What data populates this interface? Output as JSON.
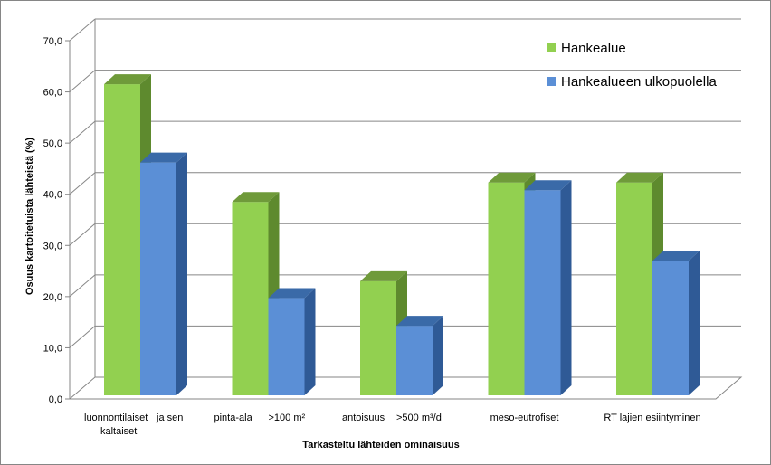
{
  "chart_data": {
    "type": "bar",
    "title": "",
    "xlabel": "Tarkasteltu lähteiden ominaisuus",
    "ylabel": "Osuus kartoitetuista lähteistä (%)",
    "ylim": [
      0,
      70
    ],
    "yticks": [
      "0,0",
      "10,0",
      "20,0",
      "30,0",
      "40,0",
      "50,0",
      "60,0",
      "70,0"
    ],
    "grid": true,
    "legend_position": "top-right",
    "categories": [
      [
        "luonnontilaiset",
        "kaltaiset",
        "ja sen"
      ],
      [
        "pinta-ala",
        ">100 m²"
      ],
      [
        "antoisuus",
        ">500 m³/d"
      ],
      [
        "meso-eutrofiset"
      ],
      [
        "RT lajien esiintyminen"
      ]
    ],
    "series": [
      {
        "name": "Hankealue",
        "values": [
          61.5,
          38.5,
          23.0,
          42.3,
          42.3
        ],
        "color": "#92d050",
        "side": "#5e8a2e",
        "top": "#6f9a3a"
      },
      {
        "name": "Hankealueen ulkopuolella",
        "values": [
          46.2,
          19.7,
          14.3,
          40.8,
          27.0
        ],
        "color": "#5b8fd6",
        "side": "#2f5a96",
        "top": "#3a6aa8"
      }
    ]
  }
}
